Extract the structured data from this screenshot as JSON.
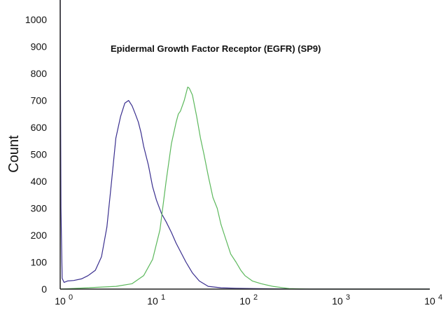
{
  "chart_data": {
    "type": "line",
    "title": "Epidermal Growth Factor Receptor (EGFR)  (SP9)",
    "xlabel": "",
    "ylabel": "Count",
    "x_scale": "log",
    "xlim": [
      1,
      10000
    ],
    "ylim": [
      0,
      1000
    ],
    "grid": false,
    "y_ticks": [
      {
        "value": 0,
        "label": "0"
      },
      {
        "value": 100,
        "label": "100"
      },
      {
        "value": 200,
        "label": "200"
      },
      {
        "value": 300,
        "label": "300"
      },
      {
        "value": 400,
        "label": "400"
      },
      {
        "value": 500,
        "label": "500"
      },
      {
        "value": 600,
        "label": "600"
      },
      {
        "value": 700,
        "label": "700"
      },
      {
        "value": 800,
        "label": "800"
      },
      {
        "value": 900,
        "label": "900"
      },
      {
        "value": 1000,
        "label": "1000"
      }
    ],
    "x_ticks": [
      {
        "value": 1,
        "base": "10",
        "exp": "0"
      },
      {
        "value": 10,
        "base": "10",
        "exp": "1"
      },
      {
        "value": 100,
        "base": "10",
        "exp": "2"
      },
      {
        "value": 1000,
        "base": "10",
        "exp": "3"
      },
      {
        "value": 10000,
        "base": "10",
        "exp": "4"
      }
    ],
    "series": [
      {
        "color": "#3a2f8f",
        "x": [
          1,
          1.02,
          1.05,
          1.1,
          1.2,
          1.4,
          1.7,
          2,
          2.4,
          2.8,
          3.2,
          3.6,
          4,
          4.5,
          5,
          5.5,
          6,
          6.5,
          7,
          7.5,
          8,
          9,
          10,
          11,
          12.5,
          14,
          16,
          18,
          20,
          23,
          27,
          32,
          40,
          55,
          80,
          120,
          200,
          400,
          1000,
          10000
        ],
        "y": [
          1080,
          300,
          40,
          25,
          30,
          32,
          38,
          50,
          70,
          120,
          230,
          400,
          560,
          640,
          690,
          700,
          680,
          650,
          620,
          580,
          530,
          460,
          380,
          330,
          280,
          250,
          210,
          170,
          140,
          100,
          60,
          30,
          10,
          5,
          3,
          2,
          1,
          0,
          0,
          0
        ]
      },
      {
        "color": "#5cb85c",
        "x": [
          1,
          2,
          4,
          6,
          8,
          10,
          12,
          14,
          16,
          18,
          19,
          20,
          22,
          24,
          25,
          27,
          30,
          33,
          36,
          40,
          45,
          50,
          55,
          60,
          70,
          80,
          90,
          100,
          120,
          150,
          200,
          300,
          500,
          1000,
          10000
        ],
        "y": [
          0,
          5,
          10,
          20,
          50,
          110,
          220,
          400,
          540,
          620,
          650,
          660,
          700,
          750,
          745,
          720,
          640,
          560,
          500,
          420,
          340,
          300,
          240,
          200,
          130,
          100,
          70,
          50,
          30,
          20,
          10,
          2,
          0,
          0,
          0
        ]
      }
    ]
  }
}
